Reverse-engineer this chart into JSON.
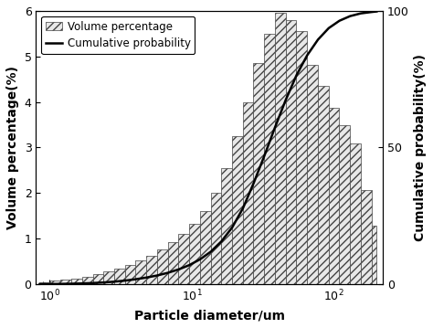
{
  "xlabel": "Particle diameter/um",
  "ylabel_left": "Volume percentage(%)",
  "ylabel_right": "Cumulative probability(%)",
  "xlim_log": [
    0.8,
    220
  ],
  "ylim_left": [
    0,
    6
  ],
  "ylim_right": [
    0,
    100
  ],
  "yticks_left": [
    0,
    1,
    2,
    3,
    4,
    5,
    6
  ],
  "yticks_right": [
    0,
    50,
    100
  ],
  "bar_edges": [
    0.85,
    1.01,
    1.2,
    1.43,
    1.7,
    2.02,
    2.4,
    2.86,
    3.4,
    4.04,
    4.81,
    5.72,
    6.8,
    8.09,
    9.62,
    11.44,
    13.61,
    16.19,
    19.26,
    22.91,
    27.25,
    32.42,
    38.57,
    45.88,
    54.59,
    64.94,
    77.27,
    91.95,
    109.4,
    130.1,
    154.8,
    184.2,
    200.0
  ],
  "bar_heights": [
    0.05,
    0.08,
    0.1,
    0.13,
    0.17,
    0.22,
    0.28,
    0.35,
    0.43,
    0.52,
    0.63,
    0.76,
    0.92,
    1.1,
    1.32,
    1.6,
    2.0,
    2.55,
    3.25,
    4.0,
    4.85,
    5.5,
    5.95,
    5.8,
    5.55,
    4.82,
    4.35,
    3.88,
    3.5,
    3.1,
    2.07,
    1.28
  ],
  "cum_x": [
    0.85,
    1.01,
    1.2,
    1.43,
    1.7,
    2.02,
    2.4,
    2.86,
    3.4,
    4.04,
    4.81,
    5.72,
    6.8,
    8.09,
    9.62,
    11.44,
    13.61,
    16.19,
    19.26,
    22.91,
    27.25,
    32.42,
    38.57,
    45.88,
    54.59,
    64.94,
    77.27,
    91.95,
    109.4,
    130.1,
    154.8,
    184.2,
    200.0
  ],
  "cum_y": [
    0.02,
    0.05,
    0.1,
    0.17,
    0.27,
    0.42,
    0.63,
    0.93,
    1.32,
    1.82,
    2.44,
    3.2,
    4.18,
    5.42,
    7.0,
    9.1,
    11.9,
    15.7,
    20.8,
    27.8,
    37.0,
    47.0,
    57.5,
    67.5,
    76.5,
    83.8,
    89.5,
    93.7,
    96.4,
    98.1,
    99.1,
    99.6,
    99.8
  ],
  "bar_color": "#e8e8e8",
  "bar_edgecolor": "#444444",
  "hatch": "////",
  "line_color": "#000000",
  "line_width": 1.8,
  "legend_labels": [
    "Volume percentage",
    "Cumulative probability"
  ],
  "background_color": "#ffffff",
  "bar_linewidth": 0.5,
  "font_size_label": 10,
  "font_size_tick": 9,
  "font_size_legend": 8.5
}
